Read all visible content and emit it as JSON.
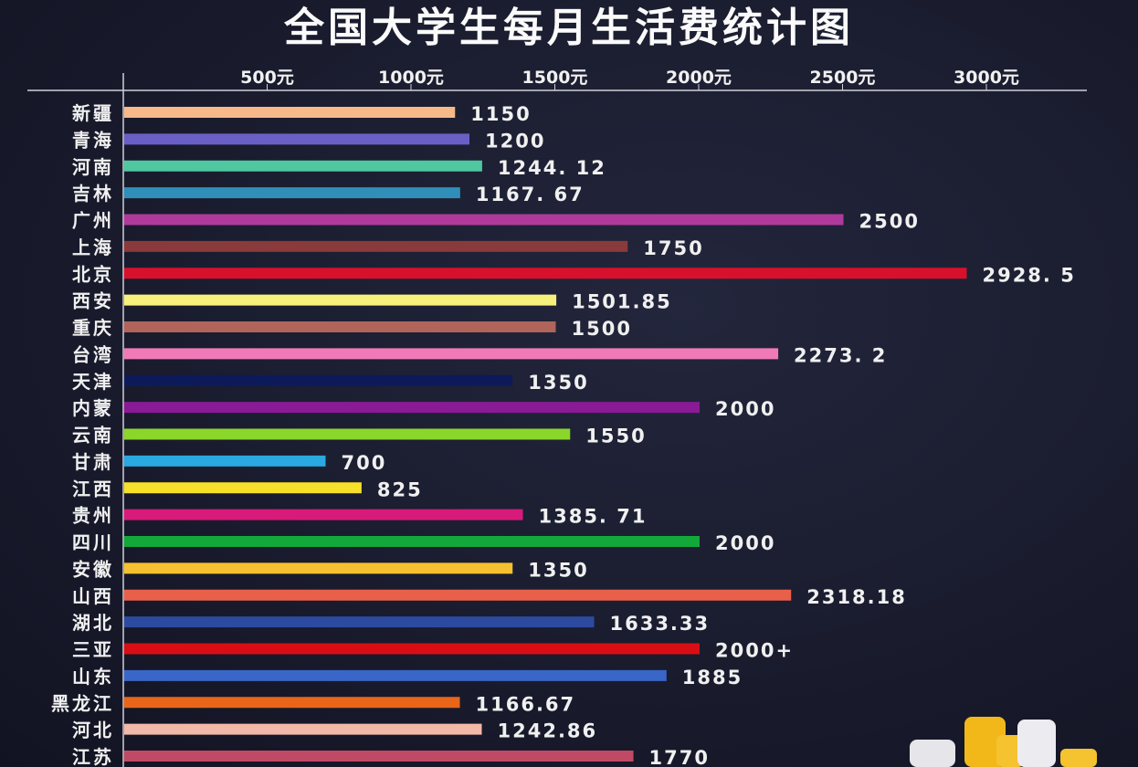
{
  "chart_data": {
    "type": "bar",
    "orientation": "horizontal",
    "title": "全国大学生每月生活费统计图",
    "x_ticks": [
      "500元",
      "1000元",
      "1500元",
      "2000元",
      "2500元",
      "3000元"
    ],
    "xlim": [
      0,
      3200
    ],
    "grid": false,
    "categories": [
      "新疆",
      "青海",
      "河南",
      "吉林",
      "广州",
      "上海",
      "北京",
      "西安",
      "重庆",
      "台湾",
      "天津",
      "内蒙",
      "云南",
      "甘肃",
      "江西",
      "贵州",
      "四川",
      "安徽",
      "山西",
      "湖北",
      "三亚",
      "山东",
      "黑龙江",
      "河北",
      "江苏"
    ],
    "values": [
      1150,
      1200,
      1244.12,
      1167.67,
      2500,
      1750,
      2928.5,
      1501.85,
      1500,
      2273.2,
      1350,
      2000,
      1550,
      700,
      825,
      1385.71,
      2000,
      1350,
      2318.18,
      1633.33,
      2000,
      1885,
      1166.67,
      1242.86,
      1770
    ],
    "data_labels": [
      "1150",
      "1200",
      "1244. 12",
      "1167. 67",
      "2500",
      "1750",
      "2928. 5",
      "1501.85",
      "1500",
      "2273. 2",
      "1350",
      "2000",
      "1550",
      "700",
      "825",
      "1385. 71",
      "2000",
      "1350",
      "2318.18",
      "1633.33",
      "2000+",
      "1885",
      "1166.67",
      "1242.86",
      "1770"
    ],
    "colors": [
      "#f7b98a",
      "#6a5fc4",
      "#4fc7a0",
      "#2f8fb8",
      "#b0399c",
      "#8a3a3a",
      "#d8102c",
      "#f7f07a",
      "#b0645a",
      "#f07ab8",
      "#0d1a5a",
      "#8a1a96",
      "#8ad62a",
      "#2aa8e0",
      "#f7e02a",
      "#d81a7a",
      "#12a83a",
      "#f7c030",
      "#e8604a",
      "#2c4aa0",
      "#d80e14",
      "#3a66c8",
      "#e8661a",
      "#f2b8a8",
      "#c04a66"
    ]
  }
}
